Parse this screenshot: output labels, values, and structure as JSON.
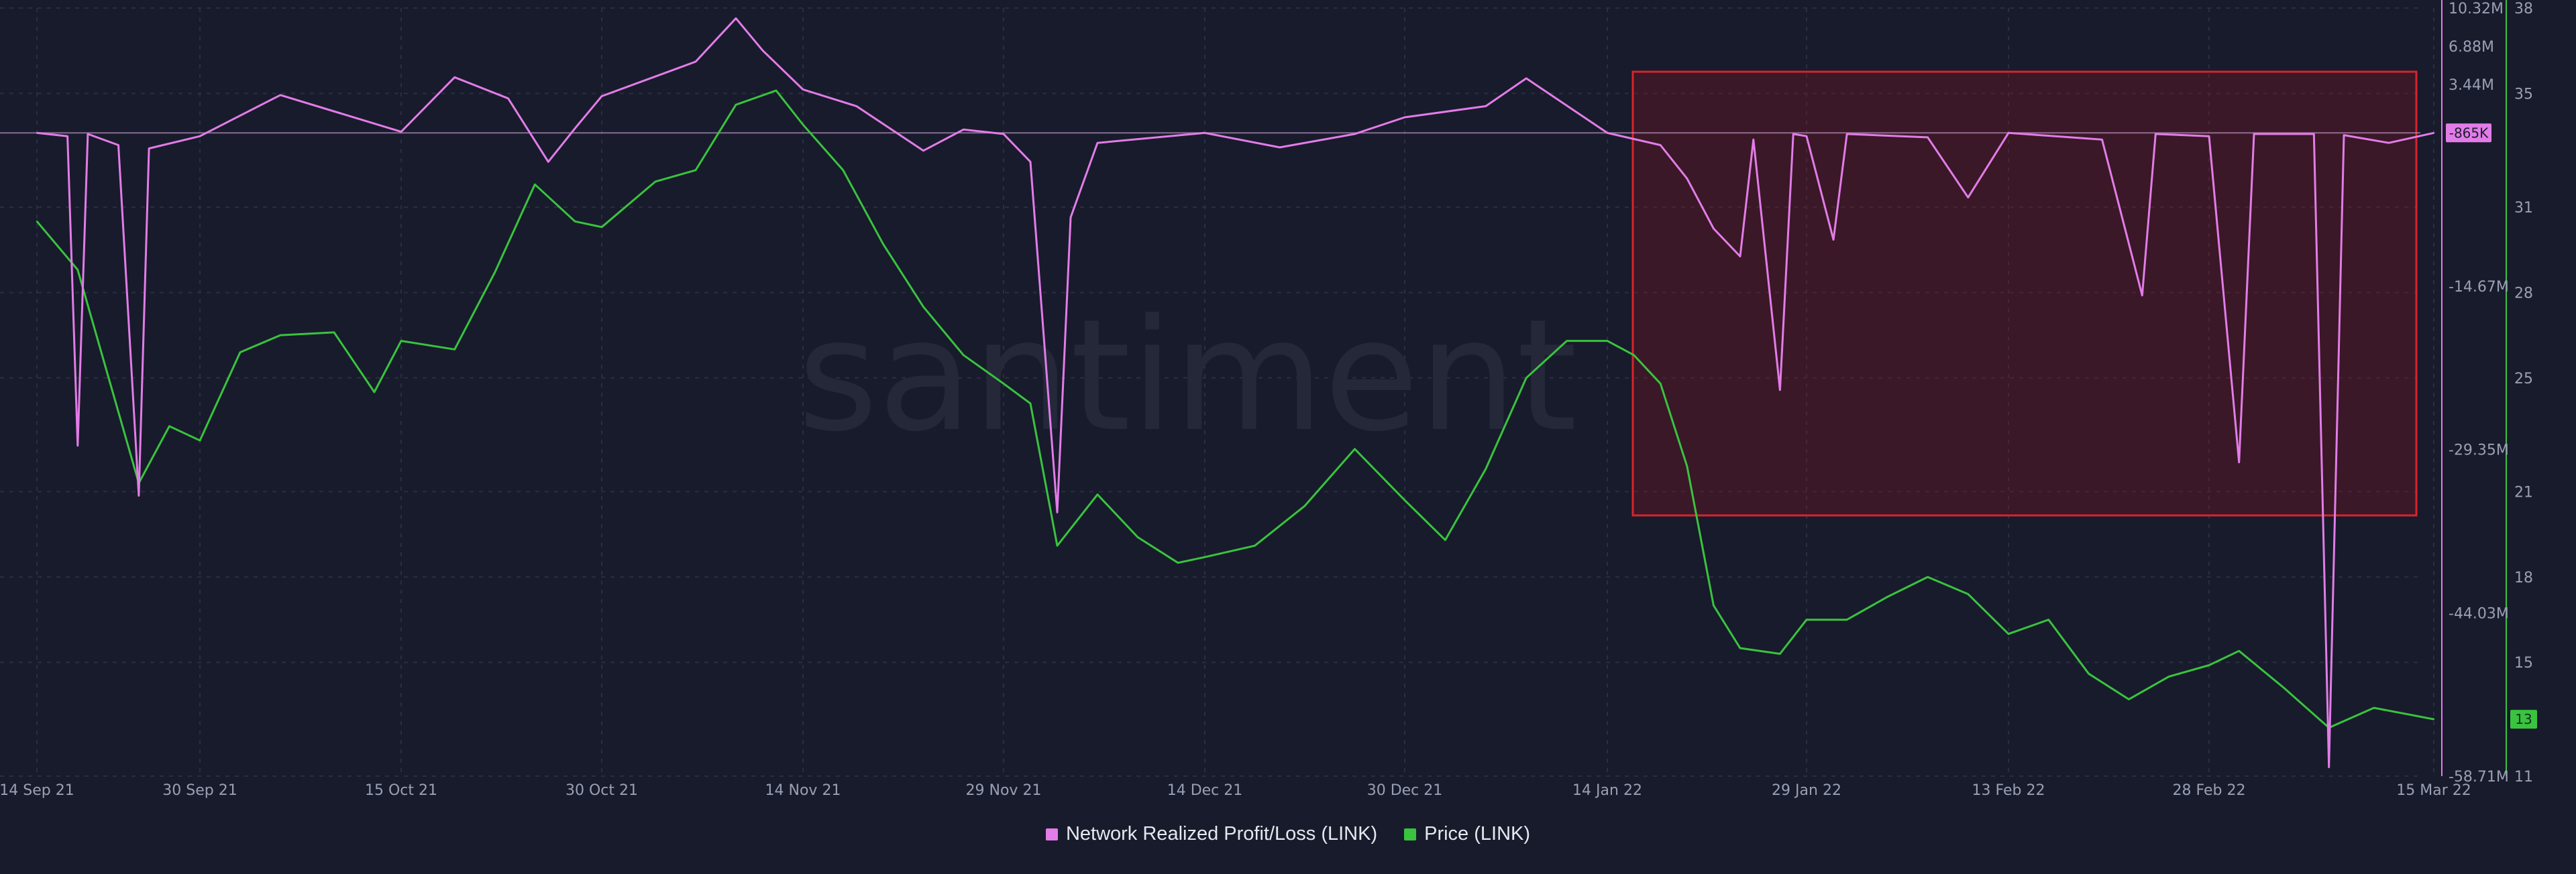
{
  "legend": {
    "series1": "Network Realized Profit/Loss (LINK)",
    "series2": "Price (LINK)"
  },
  "watermark": "santiment",
  "colors": {
    "background": "#181b2b",
    "profit_loss": "#e27ce8",
    "price": "#39c33f",
    "highlight_border": "#d9232b",
    "grid": "#2a2e42"
  },
  "chart_data": {
    "type": "line",
    "x_labels": [
      "14 Sep 21",
      "30 Sep 21",
      "15 Oct 21",
      "30 Oct 21",
      "14 Nov 21",
      "29 Nov 21",
      "14 Dec 21",
      "30 Dec 21",
      "14 Jan 22",
      "29 Jan 22",
      "13 Feb 22",
      "28 Feb 22",
      "15 Mar 22"
    ],
    "pl_axis": {
      "ticks": [
        "10.32M",
        "6.88M",
        "3.44M",
        "-14.67M",
        "-29.35M",
        "-44.03M",
        "-58.71M"
      ],
      "ylim": [
        -58.71,
        10.32
      ],
      "current_label": "-865K"
    },
    "price_axis": {
      "ticks": [
        "38",
        "35",
        "31",
        "28",
        "25",
        "21",
        "18",
        "15",
        "11"
      ],
      "ylim": [
        11,
        38
      ],
      "current_label": "13"
    },
    "series": [
      {
        "name": "Price (LINK)",
        "axis": "right",
        "points": [
          [
            "14 Sep 21",
            30.5
          ],
          [
            "18 Sep 21",
            28.8
          ],
          [
            "22 Sep 21",
            23.8
          ],
          [
            "24 Sep 21",
            21.3
          ],
          [
            "27 Sep 21",
            23.3
          ],
          [
            "30 Sep 21",
            22.8
          ],
          [
            "3 Oct 21",
            25.9
          ],
          [
            "6 Oct 21",
            26.5
          ],
          [
            "10 Oct 21",
            26.6
          ],
          [
            "13 Oct 21",
            24.5
          ],
          [
            "15 Oct 21",
            26.3
          ],
          [
            "19 Oct 21",
            26.0
          ],
          [
            "22 Oct 21",
            28.7
          ],
          [
            "25 Oct 21",
            31.8
          ],
          [
            "28 Oct 21",
            30.5
          ],
          [
            "30 Oct 21",
            30.3
          ],
          [
            "3 Nov 21",
            31.9
          ],
          [
            "6 Nov 21",
            32.3
          ],
          [
            "9 Nov 21",
            34.6
          ],
          [
            "12 Nov 21",
            35.1
          ],
          [
            "14 Nov 21",
            33.9
          ],
          [
            "17 Nov 21",
            32.3
          ],
          [
            "20 Nov 21",
            29.7
          ],
          [
            "23 Nov 21",
            27.5
          ],
          [
            "26 Nov 21",
            25.8
          ],
          [
            "29 Nov 21",
            24.8
          ],
          [
            "1 Dec 21",
            24.1
          ],
          [
            "3 Dec 21",
            19.1
          ],
          [
            "6 Dec 21",
            20.9
          ],
          [
            "9 Dec 21",
            19.4
          ],
          [
            "12 Dec 21",
            18.5
          ],
          [
            "14 Dec 21",
            18.7
          ],
          [
            "18 Dec 21",
            19.1
          ],
          [
            "22 Dec 21",
            20.5
          ],
          [
            "26 Dec 21",
            22.5
          ],
          [
            "30 Dec 21",
            20.7
          ],
          [
            "2 Jan 22",
            19.3
          ],
          [
            "5 Jan 22",
            21.8
          ],
          [
            "8 Jan 22",
            25.0
          ],
          [
            "11 Jan 22",
            26.3
          ],
          [
            "14 Jan 22",
            26.3
          ],
          [
            "16 Jan 22",
            25.8
          ],
          [
            "18 Jan 22",
            24.8
          ],
          [
            "20 Jan 22",
            21.9
          ],
          [
            "22 Jan 22",
            17.0
          ],
          [
            "24 Jan 22",
            15.5
          ],
          [
            "27 Jan 22",
            15.3
          ],
          [
            "29 Jan 22",
            16.5
          ],
          [
            "1 Feb 22",
            16.5
          ],
          [
            "4 Feb 22",
            17.3
          ],
          [
            "7 Feb 22",
            18.0
          ],
          [
            "10 Feb 22",
            17.4
          ],
          [
            "13 Feb 22",
            16.0
          ],
          [
            "16 Feb 22",
            16.5
          ],
          [
            "19 Feb 22",
            14.6
          ],
          [
            "22 Feb 22",
            13.7
          ],
          [
            "25 Feb 22",
            14.5
          ],
          [
            "28 Feb 22",
            14.9
          ],
          [
            "2 Mar 22",
            15.4
          ],
          [
            "5 Mar 22",
            14.1
          ],
          [
            "8 Mar 22",
            12.7
          ],
          [
            "11 Mar 22",
            13.4
          ],
          [
            "15 Mar 22",
            13.0
          ]
        ]
      },
      {
        "name": "Network Realized Profit/Loss (LINK)",
        "axis": "left",
        "points": [
          [
            "14 Sep 21",
            -0.9
          ],
          [
            "17 Sep 21",
            -1.2
          ],
          [
            "18 Sep 21",
            -29.0
          ],
          [
            "19 Sep 21",
            -1.0
          ],
          [
            "22 Sep 21",
            -2.0
          ],
          [
            "24 Sep 21",
            -33.5
          ],
          [
            "25 Sep 21",
            -2.3
          ],
          [
            "30 Sep 21",
            -1.2
          ],
          [
            "6 Oct 21",
            2.5
          ],
          [
            "15 Oct 21",
            -0.8
          ],
          [
            "19 Oct 21",
            4.1
          ],
          [
            "23 Oct 21",
            2.2
          ],
          [
            "26 Oct 21",
            -3.5
          ],
          [
            "28 Oct 21",
            -0.5
          ],
          [
            "30 Oct 21",
            2.4
          ],
          [
            "6 Nov 21",
            5.5
          ],
          [
            "9 Nov 21",
            9.4
          ],
          [
            "11 Nov 21",
            6.5
          ],
          [
            "14 Nov 21",
            3.0
          ],
          [
            "18 Nov 21",
            1.5
          ],
          [
            "23 Nov 21",
            -2.5
          ],
          [
            "26 Nov 21",
            -0.6
          ],
          [
            "29 Nov 21",
            -1.0
          ],
          [
            "1 Dec 21",
            -3.5
          ],
          [
            "3 Dec 21",
            -35.0
          ],
          [
            "4 Dec 21",
            -8.5
          ],
          [
            "6 Dec 21",
            -1.8
          ],
          [
            "14 Dec 21",
            -0.9
          ],
          [
            "20 Dec 21",
            -2.2
          ],
          [
            "26 Dec 21",
            -1.0
          ],
          [
            "30 Dec 21",
            0.5
          ],
          [
            "5 Jan 22",
            1.5
          ],
          [
            "8 Jan 22",
            4.0
          ],
          [
            "14 Jan 22",
            -0.9
          ],
          [
            "18 Jan 22",
            -2.0
          ],
          [
            "20 Jan 22",
            -5.0
          ],
          [
            "22 Jan 22",
            -9.5
          ],
          [
            "24 Jan 22",
            -12.0
          ],
          [
            "25 Jan 22",
            -1.5
          ],
          [
            "27 Jan 22",
            -24.0
          ],
          [
            "28 Jan 22",
            -1.0
          ],
          [
            "29 Jan 22",
            -1.2
          ],
          [
            "31 Jan 22",
            -10.5
          ],
          [
            "1 Feb 22",
            -1.0
          ],
          [
            "7 Feb 22",
            -1.3
          ],
          [
            "10 Feb 22",
            -6.7
          ],
          [
            "13 Feb 22",
            -0.9
          ],
          [
            "20 Feb 22",
            -1.5
          ],
          [
            "23 Feb 22",
            -15.5
          ],
          [
            "24 Feb 22",
            -1.0
          ],
          [
            "28 Feb 22",
            -1.2
          ],
          [
            "2 Mar 22",
            -30.5
          ],
          [
            "3 Mar 22",
            -1.0
          ],
          [
            "7 Mar 22",
            -1.0
          ],
          [
            "8 Mar 22",
            -57.9
          ],
          [
            "9 Mar 22",
            -1.1
          ],
          [
            "12 Mar 22",
            -1.8
          ],
          [
            "15 Mar 22",
            -0.9
          ]
        ]
      }
    ],
    "highlight_region": {
      "x_start": "15 Jan 22",
      "x_end": "15 Mar 22",
      "y_top": 38,
      "y_bottom": 20.3
    },
    "grid": true,
    "legend_position": "bottom"
  }
}
